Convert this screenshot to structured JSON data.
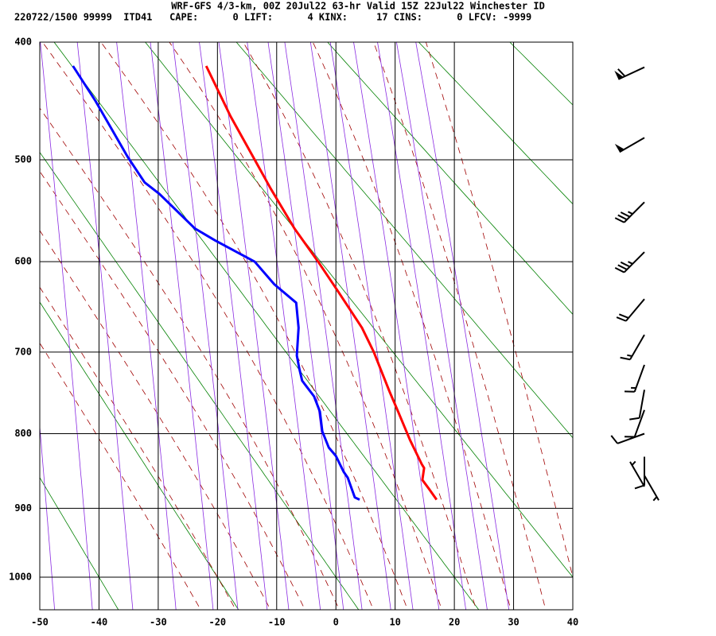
{
  "chart_data": {
    "type": "sounding",
    "title": "WRF-GFS 4/3-km, 00Z 20Jul22 63-hr Valid 15Z 22Jul22 Winchester ID",
    "subtitle": "220722/1500 99999  ITD41   CAPE:      0 LIFT:      4 KINX:     17 CINS:      0 LFCV: -9999",
    "xlim": [
      -50,
      40
    ],
    "xticks": [
      -50,
      -40,
      -30,
      -20,
      -10,
      0,
      10,
      20,
      30,
      40
    ],
    "ylim": [
      400,
      1050
    ],
    "yticks": [
      400,
      500,
      600,
      700,
      800,
      900,
      1000
    ],
    "grid": true,
    "series": [
      {
        "color": "#ff0000",
        "temperature": [
          -21.9,
          -17.8,
          -13.7,
          -11.0,
          -7.0,
          -3.0,
          0.4,
          4.4,
          6.4,
          9.1,
          10.5,
          12.5,
          14.5,
          14.9,
          14.6,
          15.8,
          17.0
        ],
        "pressure": [
          419,
          461,
          500,
          527,
          566,
          600,
          632,
          672,
          700,
          748,
          772,
          808,
          840,
          845,
          861,
          874,
          888
        ]
      },
      {
        "color": "#0000ff",
        "temperature": [
          -44.4,
          -40.6,
          -35.2,
          -32.3,
          -29.8,
          -23.8,
          -20.4,
          -13.7,
          -10.4,
          -6.7,
          -6.3,
          -6.6,
          -6.2,
          -5.7,
          -3.7,
          -2.7,
          -2.3,
          -1.2,
          0,
          1.3,
          2.0,
          3.2,
          4.0
        ],
        "pressure": [
          419,
          448,
          497,
          521,
          532,
          566,
          578,
          600,
          624,
          644,
          672,
          704,
          719,
          734,
          753,
          772,
          797,
          818,
          829,
          850,
          858,
          885,
          888
        ]
      }
    ],
    "wind": [
      {
        "pressure": 420,
        "direction": 245,
        "speed": 60
      },
      {
        "pressure": 480,
        "direction": 240,
        "speed": 50
      },
      {
        "pressure": 540,
        "direction": 225,
        "speed": 35
      },
      {
        "pressure": 590,
        "direction": 225,
        "speed": 35
      },
      {
        "pressure": 640,
        "direction": 220,
        "speed": 20
      },
      {
        "pressure": 680,
        "direction": 210,
        "speed": 15
      },
      {
        "pressure": 715,
        "direction": 200,
        "speed": 15
      },
      {
        "pressure": 745,
        "direction": 190,
        "speed": 10
      },
      {
        "pressure": 770,
        "direction": 200,
        "speed": 10
      },
      {
        "pressure": 800,
        "direction": 250,
        "speed": 10
      },
      {
        "pressure": 830,
        "direction": 180,
        "speed": 10
      },
      {
        "pressure": 855,
        "direction": 150,
        "speed": 5
      },
      {
        "pressure": 870,
        "direction": 330,
        "speed": 5
      }
    ]
  }
}
